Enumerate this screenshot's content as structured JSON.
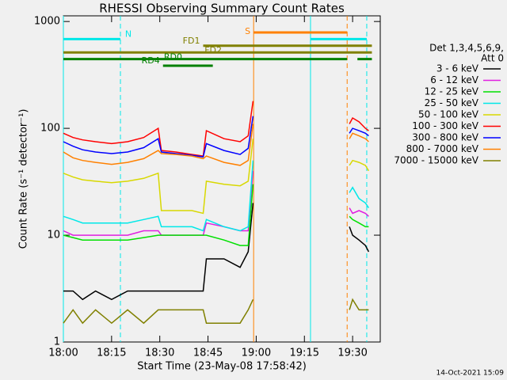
{
  "chart_data": {
    "type": "line",
    "title": "RHESSI Observing Summary Count Rates",
    "xlabel": "Start Time (23-May-08 17:58:42)",
    "ylabel": "Count Rate (s⁻¹ detector⁻¹)",
    "footer": "14-Oct-2021 15:09",
    "legend_header": [
      "Det 1,3,4,5,6,9,",
      "Att 0"
    ],
    "log_y": true,
    "xlim": [
      0,
      98.6
    ],
    "ylim": [
      1,
      1130
    ],
    "yticks": [
      1,
      10,
      100,
      1000
    ],
    "xticks": [
      {
        "value": 0,
        "label": "18:00"
      },
      {
        "value": 15,
        "label": "18:15"
      },
      {
        "value": 30,
        "label": "18:30"
      },
      {
        "value": 45,
        "label": "18:45"
      },
      {
        "value": 60,
        "label": "19:00"
      },
      {
        "value": 75,
        "label": "19:15"
      },
      {
        "value": 90,
        "label": "19:30"
      }
    ],
    "x": [
      0,
      3,
      6,
      10,
      15,
      20,
      25,
      29.5,
      30.5,
      35,
      40,
      43.5,
      44.5,
      50,
      55,
      57.5,
      59,
      60,
      89,
      90,
      92,
      94,
      95
    ],
    "series": [
      {
        "name": "3 - 6 keV",
        "color": "#000000",
        "values": [
          3,
          3,
          2.5,
          3,
          2.5,
          3,
          3,
          3,
          3,
          3,
          3,
          3,
          6,
          6,
          5,
          7,
          20,
          null,
          12,
          10,
          9,
          8,
          7
        ]
      },
      {
        "name": "6 - 12 keV",
        "color": "#e020e0",
        "values": [
          11,
          10,
          10,
          10,
          10,
          10,
          11,
          11,
          10,
          10,
          10,
          10,
          13,
          12,
          11,
          11,
          40,
          null,
          18,
          16,
          17,
          16,
          15
        ]
      },
      {
        "name": "12 - 25 keV",
        "color": "#00e000",
        "values": [
          10,
          9.5,
          9,
          9,
          9,
          9,
          9.5,
          10,
          10,
          10,
          10,
          10,
          10,
          9,
          8,
          8,
          30,
          null,
          15,
          14,
          13,
          12,
          12
        ]
      },
      {
        "name": "25 - 50 keV",
        "color": "#00e8e8",
        "values": [
          15,
          14,
          13,
          13,
          13,
          13,
          14,
          15,
          12,
          12,
          12,
          11,
          14,
          12,
          11,
          12,
          50,
          null,
          25,
          28,
          22,
          20,
          18
        ]
      },
      {
        "name": "50 - 100 keV",
        "color": "#d8d800",
        "values": [
          38,
          35,
          33,
          32,
          31,
          32,
          34,
          38,
          17,
          17,
          17,
          16,
          32,
          30,
          29,
          32,
          80,
          null,
          45,
          50,
          48,
          45,
          40
        ]
      },
      {
        "name": "100 - 300 keV",
        "color": "#ff0000",
        "values": [
          90,
          82,
          78,
          75,
          72,
          75,
          82,
          100,
          62,
          60,
          57,
          55,
          95,
          80,
          75,
          85,
          180,
          null,
          110,
          125,
          115,
          100,
          95
        ]
      },
      {
        "name": "300 - 800 keV",
        "color": "#0000ff",
        "values": [
          75,
          68,
          63,
          60,
          58,
          60,
          66,
          80,
          60,
          58,
          56,
          54,
          72,
          62,
          57,
          65,
          130,
          null,
          90,
          100,
          95,
          90,
          85
        ]
      },
      {
        "name": "800 - 7000 keV",
        "color": "#ff8000",
        "values": [
          60,
          53,
          50,
          48,
          46,
          48,
          52,
          62,
          58,
          57,
          55,
          52,
          55,
          48,
          45,
          50,
          110,
          null,
          80,
          90,
          85,
          80,
          75
        ]
      },
      {
        "name": "7000 - 15000 keV",
        "color": "#808000",
        "values": [
          1.5,
          2,
          1.5,
          2,
          1.5,
          2,
          1.5,
          2,
          2,
          2,
          2,
          2,
          1.5,
          1.5,
          1.5,
          2,
          2.5,
          null,
          2,
          2.5,
          2,
          2,
          2
        ]
      }
    ],
    "flags": [
      {
        "label": "S",
        "color": "#ff8000",
        "segments": [
          [
            59.2,
            88.3
          ]
        ]
      },
      {
        "label": "N",
        "color": "#00e8e8",
        "segments": [
          [
            0,
            17.75
          ],
          [
            76.9,
            94.4
          ]
        ]
      },
      {
        "label": "FD1",
        "color": "#808000",
        "segments": [
          [
            43.5,
            96
          ]
        ]
      },
      {
        "label": "FD2",
        "color": "#808000",
        "segments": [
          [
            0,
            96
          ]
        ]
      },
      {
        "label": "RD0",
        "color": "#008000",
        "segments": [
          [
            0,
            88.3
          ],
          [
            91.5,
            96
          ]
        ]
      },
      {
        "label": "RD4",
        "color": "#008000",
        "segments": [
          [
            31,
            46.5
          ]
        ]
      }
    ],
    "markers": [
      {
        "x": 0,
        "color": "#00e8e8",
        "dashed": false
      },
      {
        "x": 17.75,
        "color": "#00e8e8",
        "dashed": true
      },
      {
        "x": 59.2,
        "color": "#ff8000",
        "dashed": false
      },
      {
        "x": 76.9,
        "color": "#00e8e8",
        "dashed": false
      },
      {
        "x": 88.3,
        "color": "#ff8000",
        "dashed": true
      },
      {
        "x": 94.4,
        "color": "#00e8e8",
        "dashed": true
      }
    ]
  }
}
